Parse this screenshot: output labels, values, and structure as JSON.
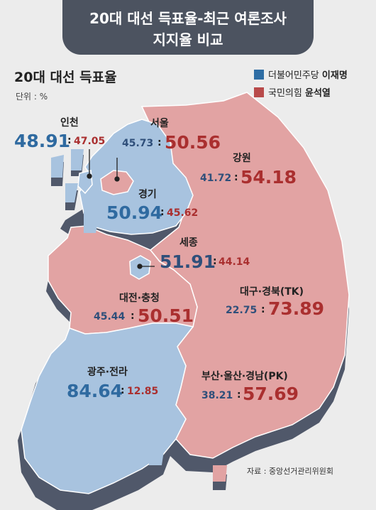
{
  "title": {
    "line1": "20대 대선 득표율-최근 여론조사",
    "line2": "지지율 비교"
  },
  "subtitle": "20대 대선 득표율",
  "unit": "단위 : %",
  "legend": [
    {
      "party": "더불어민주당",
      "candidate": "이재명",
      "color": "#2e6da4"
    },
    {
      "party": "국민의힘",
      "candidate": "윤석열",
      "color": "#b84a4a"
    }
  ],
  "colors": {
    "blue_region": "#a8c3df",
    "red_region": "#e2a3a3",
    "blue_text": "#2f6aa0",
    "red_text": "#aa2f2f"
  },
  "regions": [
    {
      "name": "인천",
      "lee": "48.91",
      "yoon": "47.05",
      "winner": "lee"
    },
    {
      "name": "서울",
      "lee": "45.73",
      "yoon": "50.56",
      "winner": "yoon"
    },
    {
      "name": "강원",
      "lee": "41.72",
      "yoon": "54.18",
      "winner": "yoon"
    },
    {
      "name": "경기",
      "lee": "50.94",
      "yoon": "45.62",
      "winner": "lee"
    },
    {
      "name": "세종",
      "lee": "51.91",
      "yoon": "44.14",
      "winner": "lee"
    },
    {
      "name": "대전·충청",
      "lee": "45.44",
      "yoon": "50.51",
      "winner": "yoon"
    },
    {
      "name": "대구·경북(TK)",
      "lee": "22.75",
      "yoon": "73.89",
      "winner": "yoon"
    },
    {
      "name": "광주·전라",
      "lee": "84.64",
      "yoon": "12.85",
      "winner": "lee"
    },
    {
      "name": "부산·울산·경남(PK)",
      "lee": "38.21",
      "yoon": "57.69",
      "winner": "yoon"
    }
  ],
  "colon": ":",
  "source": "자료 : 중앙선거관리위원회"
}
